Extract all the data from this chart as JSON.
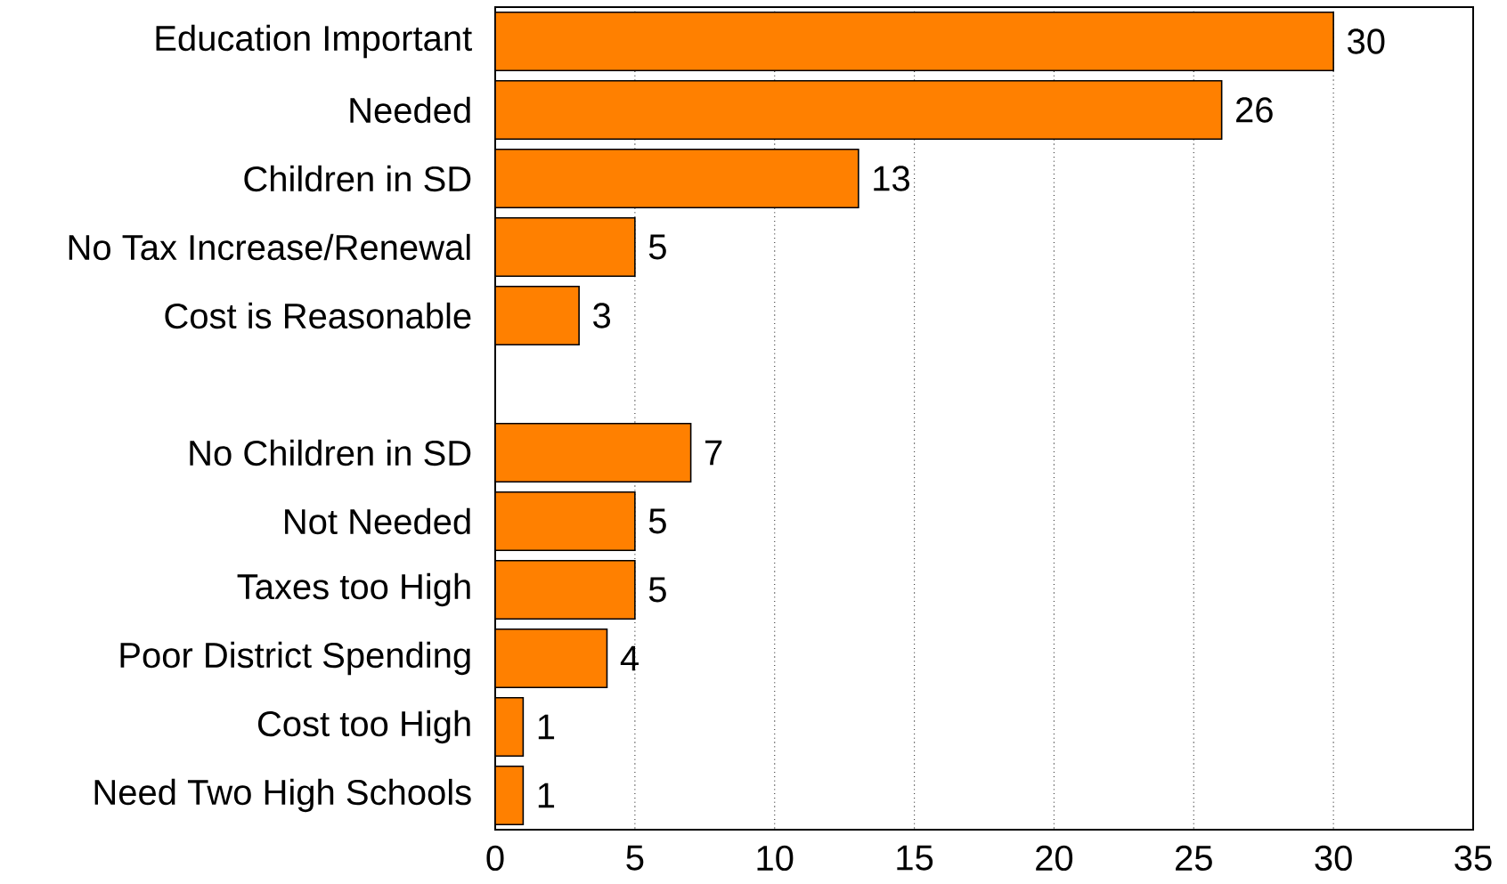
{
  "chart_data": {
    "type": "bar",
    "orientation": "horizontal",
    "categories": [
      "Education Important",
      "Needed",
      "Children in SD",
      "No Tax Increase/Renewal",
      "Cost is Reasonable",
      null,
      "No Children in SD",
      "Not Needed",
      "Taxes too High",
      "Poor District Spending",
      "Cost too High",
      "Need Two High Schools"
    ],
    "values": [
      30,
      26,
      13,
      5,
      3,
      null,
      7,
      5,
      5,
      4,
      1,
      1
    ],
    "color": "#ff8000",
    "xlim": [
      0,
      35
    ],
    "xticks": [
      0,
      5,
      10,
      15,
      20,
      25,
      30,
      35
    ],
    "grid": "x",
    "data_labels": true
  }
}
